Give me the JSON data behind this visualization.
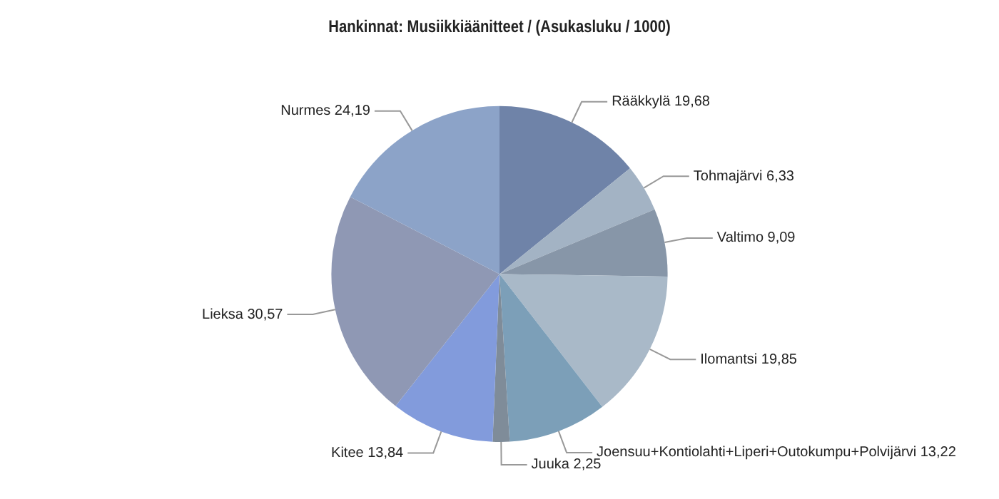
{
  "chart_data": {
    "type": "pie",
    "title": "Hankinnat: Musiikkiäänitteet / (Asukasluku / 1000)",
    "categories": [
      "Rääkkylä",
      "Tohmajärvi",
      "Valtimo",
      "Ilomantsi",
      "Joensuu+Kontiolahti+Liperi+Outokumpu+Polvijärvi",
      "Juuka",
      "Kitee",
      "Lieksa",
      "Nurmes"
    ],
    "values": [
      19.68,
      6.33,
      9.09,
      19.85,
      13.22,
      2.25,
      13.84,
      30.57,
      24.19
    ],
    "value_labels": [
      "19,68",
      "6,33",
      "9,09",
      "19,85",
      "13,22",
      "2,25",
      "13,84",
      "30,57",
      "24,19"
    ],
    "colors": [
      "#6f83a8",
      "#a3b3c4",
      "#8796a8",
      "#a9b9c8",
      "#7c9fb8",
      "#7f8c99",
      "#829bdc",
      "#8f98b4",
      "#8ca3c8"
    ],
    "legend": false
  }
}
